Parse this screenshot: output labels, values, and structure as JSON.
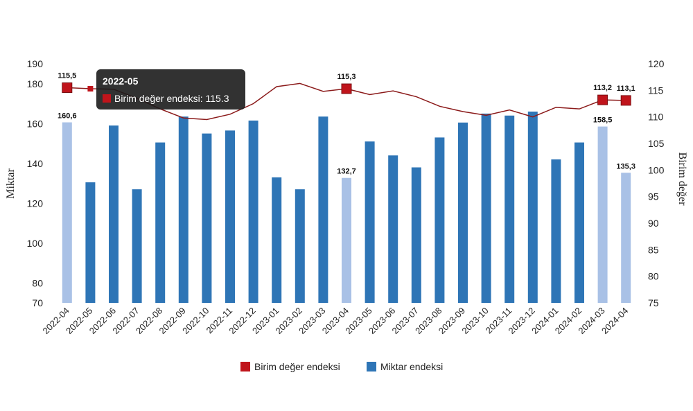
{
  "chart_data": {
    "type": "bar",
    "categories": [
      "2022-04",
      "2022-05",
      "2022-06",
      "2022-07",
      "2022-08",
      "2022-09",
      "2022-10",
      "2022-11",
      "2022-12",
      "2023-01",
      "2023-02",
      "2023-03",
      "2023-04",
      "2023-05",
      "2023-06",
      "2023-07",
      "2023-08",
      "2023-09",
      "2023-10",
      "2023-11",
      "2023-12",
      "2024-01",
      "2024-02",
      "2024-03",
      "2024-04"
    ],
    "series": [
      {
        "name": "Miktar endeksi",
        "kind": "bar",
        "axis": "left",
        "color": "#2e75b6",
        "highlight_color": "#a9c1e6",
        "highlight_indices": [
          0,
          12,
          23,
          24
        ],
        "values": [
          160.6,
          130.5,
          159,
          127,
          150.5,
          163.5,
          155,
          156.5,
          161.5,
          133,
          127,
          163.5,
          132.7,
          151,
          144,
          138,
          153,
          160.5,
          165,
          164,
          166,
          142,
          150.5,
          158.5,
          135.3
        ]
      },
      {
        "name": "Birim değer endeksi",
        "kind": "line",
        "axis": "right",
        "color": "#8b1a1a",
        "marker_color": "#c0141b",
        "values": [
          115.5,
          115.3,
          115.2,
          113.5,
          111.5,
          109.8,
          109.5,
          110.5,
          112.5,
          115.7,
          116.3,
          114.8,
          115.3,
          114.2,
          114.9,
          113.8,
          112,
          111,
          110.3,
          111.3,
          110,
          111.8,
          111.5,
          113.2,
          113.1
        ]
      }
    ],
    "data_labels": [
      {
        "index": 0,
        "series": "bar",
        "text": "160,6"
      },
      {
        "index": 12,
        "series": "bar",
        "text": "132,7"
      },
      {
        "index": 23,
        "series": "bar",
        "text": "158,5"
      },
      {
        "index": 24,
        "series": "bar",
        "text": "135,3"
      },
      {
        "index": 0,
        "series": "line",
        "text": "115,5"
      },
      {
        "index": 12,
        "series": "line",
        "text": "115,3"
      },
      {
        "index": 23,
        "series": "line",
        "text": "113,2"
      },
      {
        "index": 24,
        "series": "line",
        "text": "113,1"
      }
    ],
    "y_left": {
      "label": "Miktar",
      "ticks": [
        70,
        80,
        100,
        120,
        140,
        160,
        180,
        190
      ],
      "lim": [
        70,
        190
      ]
    },
    "y_right": {
      "label": "Birim değer",
      "ticks": [
        75,
        80,
        85,
        90,
        95,
        100,
        105,
        110,
        115,
        120
      ],
      "lim": [
        75,
        120
      ]
    },
    "legend": {
      "position": "bottom",
      "items": [
        "Birim değer endeksi",
        "Miktar endeksi"
      ]
    },
    "grid": false,
    "tooltip": {
      "category": "2022-05",
      "text": "Birim değer endeksi: 115.3"
    }
  }
}
